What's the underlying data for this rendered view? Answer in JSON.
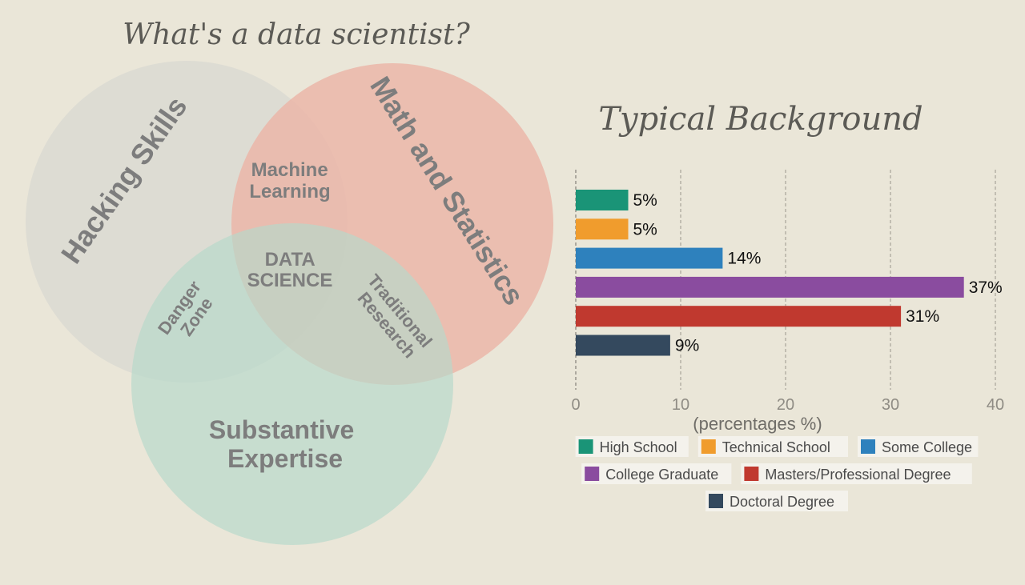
{
  "venn": {
    "title": "What's a data scientist?",
    "circles": [
      {
        "label": "Hacking Skills",
        "color": "#dcdad3"
      },
      {
        "label": "Math and Statistics",
        "color": "#ecb5a7"
      },
      {
        "label": "Substantive Expertise",
        "color": "#b7d8ca"
      }
    ],
    "overlaps": {
      "hacking_math": [
        "Machine",
        "Learning"
      ],
      "center": [
        "DATA",
        "SCIENCE"
      ],
      "hacking_expertise": [
        "Danger",
        "Zone"
      ],
      "math_expertise": [
        "Traditional",
        "Research"
      ]
    },
    "expertise_lines": [
      "Substantive",
      "Expertise"
    ]
  },
  "chart_data": {
    "type": "bar",
    "orientation": "horizontal",
    "title": "Typical Background",
    "xlabel": "(percentages %)",
    "xlim": [
      0,
      40
    ],
    "xticks": [
      0,
      10,
      20,
      30,
      40
    ],
    "grid": true,
    "categories": [
      "High School",
      "Technical School",
      "Some College",
      "College Graduate",
      "Masters/Professional Degree",
      "Doctoral Degree"
    ],
    "values": [
      5,
      5,
      14,
      37,
      31,
      9
    ],
    "value_labels": [
      "5%",
      "5%",
      "14%",
      "37%",
      "31%",
      "9%"
    ],
    "colors": [
      "#1a9477",
      "#f09c2d",
      "#2e81bd",
      "#8a4c9f",
      "#c0392f",
      "#34495e"
    ],
    "legend_position": "bottom"
  }
}
